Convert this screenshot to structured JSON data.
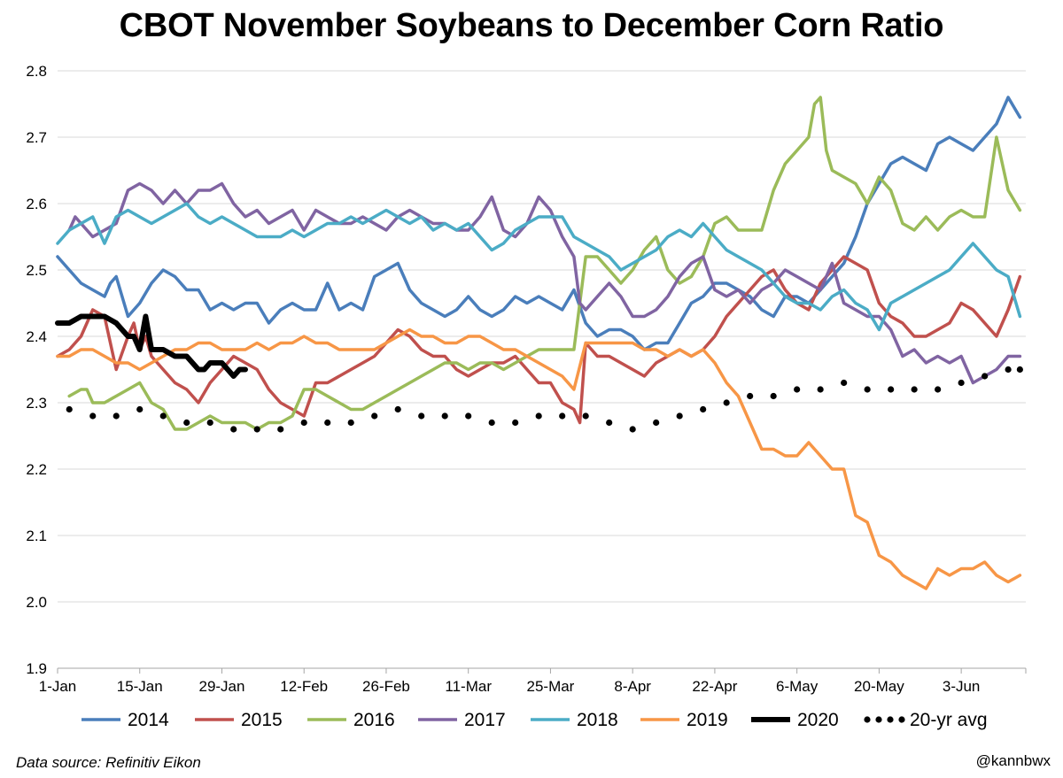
{
  "chart_data": {
    "type": "line",
    "title": "CBOT November Soybeans to December Corn Ratio",
    "xlabel": "",
    "ylabel": "",
    "x_range_days": [
      0,
      165
    ],
    "ylim": [
      1.9,
      2.8
    ],
    "yticks": [
      "1.9",
      "2.0",
      "2.1",
      "2.2",
      "2.3",
      "2.4",
      "2.5",
      "2.6",
      "2.7",
      "2.8"
    ],
    "xticks": [
      {
        "day": 0,
        "label": "1-Jan"
      },
      {
        "day": 14,
        "label": "15-Jan"
      },
      {
        "day": 28,
        "label": "29-Jan"
      },
      {
        "day": 42,
        "label": "12-Feb"
      },
      {
        "day": 56,
        "label": "26-Feb"
      },
      {
        "day": 70,
        "label": "11-Mar"
      },
      {
        "day": 84,
        "label": "25-Mar"
      },
      {
        "day": 98,
        "label": "8-Apr"
      },
      {
        "day": 112,
        "label": "22-Apr"
      },
      {
        "day": 126,
        "label": "6-May"
      },
      {
        "day": 140,
        "label": "20-May"
      },
      {
        "day": 154,
        "label": "3-Jun"
      }
    ],
    "grid": true,
    "legend_position": "bottom",
    "series": [
      {
        "name": "2014",
        "color": "#4a7ebb",
        "style": "solid",
        "x": [
          0,
          2,
          4,
          6,
          8,
          9,
          10,
          12,
          14,
          16,
          18,
          20,
          22,
          24,
          26,
          28,
          30,
          32,
          34,
          36,
          38,
          40,
          42,
          44,
          46,
          48,
          50,
          52,
          54,
          56,
          58,
          60,
          62,
          64,
          66,
          68,
          70,
          72,
          74,
          76,
          78,
          80,
          82,
          84,
          86,
          88,
          90,
          92,
          94,
          96,
          98,
          100,
          102,
          104,
          106,
          108,
          110,
          112,
          114,
          116,
          118,
          120,
          122,
          124,
          126,
          128,
          130,
          132,
          134,
          136,
          138,
          140,
          142,
          144,
          146,
          148,
          150,
          152,
          154,
          156,
          158,
          160,
          162,
          164
        ],
        "y": [
          2.52,
          2.5,
          2.48,
          2.47,
          2.46,
          2.48,
          2.49,
          2.43,
          2.45,
          2.48,
          2.5,
          2.49,
          2.47,
          2.47,
          2.44,
          2.45,
          2.44,
          2.45,
          2.45,
          2.42,
          2.44,
          2.45,
          2.44,
          2.44,
          2.48,
          2.44,
          2.45,
          2.44,
          2.49,
          2.5,
          2.51,
          2.47,
          2.45,
          2.44,
          2.43,
          2.44,
          2.46,
          2.44,
          2.43,
          2.44,
          2.46,
          2.45,
          2.46,
          2.45,
          2.44,
          2.47,
          2.42,
          2.4,
          2.41,
          2.41,
          2.4,
          2.38,
          2.39,
          2.39,
          2.42,
          2.45,
          2.46,
          2.48,
          2.48,
          2.47,
          2.46,
          2.44,
          2.43,
          2.46,
          2.46,
          2.45,
          2.47,
          2.49,
          2.51,
          2.55,
          2.6,
          2.63,
          2.66,
          2.67,
          2.66,
          2.65,
          2.69,
          2.7,
          2.69,
          2.68,
          2.7,
          2.72,
          2.76,
          2.73
        ]
      },
      {
        "name": "2015",
        "color": "#c0504d",
        "style": "solid",
        "x": [
          0,
          2,
          4,
          6,
          8,
          10,
          12,
          13,
          14,
          15,
          16,
          17,
          18,
          20,
          22,
          24,
          26,
          28,
          30,
          32,
          34,
          36,
          38,
          40,
          42,
          44,
          46,
          48,
          50,
          52,
          54,
          56,
          58,
          60,
          62,
          64,
          66,
          68,
          70,
          72,
          74,
          76,
          78,
          80,
          82,
          84,
          86,
          88,
          89,
          90,
          92,
          94,
          96,
          98,
          100,
          102,
          104,
          106,
          108,
          110,
          112,
          114,
          116,
          118,
          120,
          122,
          124,
          126,
          128,
          130,
          132,
          134,
          136,
          138,
          140,
          142,
          144,
          146,
          148,
          150,
          152,
          154,
          156,
          158,
          160,
          162,
          164
        ],
        "y": [
          2.37,
          2.38,
          2.4,
          2.44,
          2.43,
          2.35,
          2.4,
          2.42,
          2.38,
          2.4,
          2.37,
          2.36,
          2.35,
          2.33,
          2.32,
          2.3,
          2.33,
          2.35,
          2.37,
          2.36,
          2.35,
          2.32,
          2.3,
          2.29,
          2.28,
          2.33,
          2.33,
          2.34,
          2.35,
          2.36,
          2.37,
          2.39,
          2.41,
          2.4,
          2.38,
          2.37,
          2.37,
          2.35,
          2.34,
          2.35,
          2.36,
          2.36,
          2.37,
          2.35,
          2.33,
          2.33,
          2.3,
          2.29,
          2.27,
          2.39,
          2.37,
          2.37,
          2.36,
          2.35,
          2.34,
          2.36,
          2.37,
          2.38,
          2.37,
          2.38,
          2.4,
          2.43,
          2.45,
          2.47,
          2.49,
          2.5,
          2.47,
          2.45,
          2.44,
          2.48,
          2.5,
          2.52,
          2.51,
          2.5,
          2.45,
          2.43,
          2.42,
          2.4,
          2.4,
          2.41,
          2.42,
          2.45,
          2.44,
          2.42,
          2.4,
          2.44,
          2.49
        ]
      },
      {
        "name": "2016",
        "color": "#9bbb59",
        "style": "solid",
        "x": [
          2,
          4,
          5,
          6,
          8,
          10,
          12,
          14,
          16,
          18,
          20,
          22,
          24,
          26,
          28,
          30,
          32,
          34,
          36,
          38,
          40,
          42,
          44,
          46,
          48,
          50,
          52,
          54,
          56,
          58,
          60,
          62,
          64,
          66,
          68,
          70,
          72,
          74,
          76,
          78,
          80,
          82,
          84,
          86,
          88,
          90,
          92,
          94,
          96,
          98,
          100,
          102,
          104,
          106,
          108,
          110,
          112,
          114,
          116,
          118,
          120,
          122,
          124,
          126,
          128,
          129,
          130,
          131,
          132,
          134,
          136,
          138,
          140,
          142,
          144,
          146,
          148,
          150,
          152,
          154,
          156,
          158,
          160,
          162,
          164
        ],
        "y": [
          2.31,
          2.32,
          2.32,
          2.3,
          2.3,
          2.31,
          2.32,
          2.33,
          2.3,
          2.29,
          2.26,
          2.26,
          2.27,
          2.28,
          2.27,
          2.27,
          2.27,
          2.26,
          2.27,
          2.27,
          2.28,
          2.32,
          2.32,
          2.31,
          2.3,
          2.29,
          2.29,
          2.3,
          2.31,
          2.32,
          2.33,
          2.34,
          2.35,
          2.36,
          2.36,
          2.35,
          2.36,
          2.36,
          2.35,
          2.36,
          2.37,
          2.38,
          2.38,
          2.38,
          2.38,
          2.52,
          2.52,
          2.5,
          2.48,
          2.5,
          2.53,
          2.55,
          2.5,
          2.48,
          2.49,
          2.52,
          2.57,
          2.58,
          2.56,
          2.56,
          2.56,
          2.62,
          2.66,
          2.68,
          2.7,
          2.75,
          2.76,
          2.68,
          2.65,
          2.64,
          2.63,
          2.6,
          2.64,
          2.62,
          2.57,
          2.56,
          2.58,
          2.56,
          2.58,
          2.59,
          2.58,
          2.58,
          2.7,
          2.62,
          2.59
        ]
      },
      {
        "name": "2017",
        "color": "#8064a2",
        "style": "solid",
        "x": [
          2,
          3,
          4,
          6,
          8,
          10,
          12,
          14,
          16,
          18,
          20,
          22,
          24,
          26,
          28,
          30,
          32,
          34,
          36,
          38,
          40,
          42,
          44,
          46,
          48,
          50,
          52,
          54,
          56,
          58,
          60,
          62,
          64,
          66,
          68,
          70,
          72,
          74,
          76,
          78,
          80,
          82,
          84,
          86,
          88,
          89,
          90,
          92,
          94,
          96,
          98,
          100,
          102,
          104,
          106,
          108,
          110,
          112,
          114,
          116,
          118,
          120,
          122,
          124,
          126,
          128,
          130,
          132,
          134,
          136,
          138,
          140,
          142,
          144,
          146,
          148,
          150,
          152,
          154,
          156,
          158,
          160,
          162,
          164
        ],
        "y": [
          2.56,
          2.58,
          2.57,
          2.55,
          2.56,
          2.57,
          2.62,
          2.63,
          2.62,
          2.6,
          2.62,
          2.6,
          2.62,
          2.62,
          2.63,
          2.6,
          2.58,
          2.59,
          2.57,
          2.58,
          2.59,
          2.56,
          2.59,
          2.58,
          2.57,
          2.57,
          2.58,
          2.57,
          2.56,
          2.58,
          2.59,
          2.58,
          2.57,
          2.57,
          2.56,
          2.56,
          2.58,
          2.61,
          2.56,
          2.55,
          2.57,
          2.61,
          2.59,
          2.55,
          2.52,
          2.45,
          2.44,
          2.46,
          2.48,
          2.46,
          2.43,
          2.43,
          2.44,
          2.46,
          2.49,
          2.51,
          2.52,
          2.47,
          2.46,
          2.47,
          2.45,
          2.47,
          2.48,
          2.5,
          2.49,
          2.48,
          2.47,
          2.51,
          2.45,
          2.44,
          2.43,
          2.43,
          2.41,
          2.37,
          2.38,
          2.36,
          2.37,
          2.36,
          2.37,
          2.33,
          2.34,
          2.35,
          2.37,
          2.37
        ]
      },
      {
        "name": "2018",
        "color": "#4bacc6",
        "style": "solid",
        "x": [
          0,
          2,
          4,
          6,
          8,
          10,
          12,
          14,
          16,
          18,
          20,
          22,
          24,
          26,
          28,
          30,
          32,
          34,
          36,
          38,
          40,
          42,
          44,
          46,
          48,
          50,
          52,
          54,
          56,
          58,
          60,
          62,
          64,
          66,
          68,
          70,
          72,
          74,
          76,
          78,
          80,
          82,
          84,
          86,
          88,
          90,
          92,
          94,
          96,
          98,
          100,
          102,
          104,
          106,
          108,
          110,
          112,
          114,
          116,
          118,
          120,
          122,
          124,
          126,
          128,
          130,
          132,
          134,
          136,
          138,
          140,
          142,
          144,
          146,
          148,
          150,
          152,
          154,
          156,
          158,
          160,
          162,
          164
        ],
        "y": [
          2.54,
          2.56,
          2.57,
          2.58,
          2.54,
          2.58,
          2.59,
          2.58,
          2.57,
          2.58,
          2.59,
          2.6,
          2.58,
          2.57,
          2.58,
          2.57,
          2.56,
          2.55,
          2.55,
          2.55,
          2.56,
          2.55,
          2.56,
          2.57,
          2.57,
          2.58,
          2.57,
          2.58,
          2.59,
          2.58,
          2.57,
          2.58,
          2.56,
          2.57,
          2.56,
          2.57,
          2.55,
          2.53,
          2.54,
          2.56,
          2.57,
          2.58,
          2.58,
          2.58,
          2.55,
          2.54,
          2.53,
          2.52,
          2.5,
          2.51,
          2.52,
          2.53,
          2.55,
          2.56,
          2.55,
          2.57,
          2.55,
          2.53,
          2.52,
          2.51,
          2.5,
          2.48,
          2.46,
          2.45,
          2.45,
          2.44,
          2.46,
          2.47,
          2.45,
          2.44,
          2.41,
          2.45,
          2.46,
          2.47,
          2.48,
          2.49,
          2.5,
          2.52,
          2.54,
          2.52,
          2.5,
          2.49,
          2.43
        ]
      },
      {
        "name": "2019",
        "color": "#f79646",
        "style": "solid",
        "x": [
          0,
          2,
          4,
          6,
          8,
          10,
          12,
          14,
          16,
          18,
          20,
          22,
          24,
          26,
          28,
          30,
          32,
          34,
          36,
          38,
          40,
          42,
          44,
          46,
          48,
          50,
          52,
          54,
          56,
          58,
          60,
          62,
          64,
          66,
          68,
          70,
          72,
          74,
          76,
          78,
          80,
          82,
          84,
          86,
          88,
          90,
          92,
          94,
          96,
          98,
          100,
          102,
          104,
          106,
          108,
          110,
          112,
          114,
          116,
          118,
          120,
          122,
          124,
          126,
          128,
          130,
          132,
          134,
          136,
          138,
          140,
          142,
          144,
          146,
          148,
          150,
          152,
          154,
          156,
          158,
          160,
          162,
          164
        ],
        "y": [
          2.37,
          2.37,
          2.38,
          2.38,
          2.37,
          2.36,
          2.36,
          2.35,
          2.36,
          2.37,
          2.38,
          2.38,
          2.39,
          2.39,
          2.38,
          2.38,
          2.38,
          2.39,
          2.38,
          2.39,
          2.39,
          2.4,
          2.39,
          2.39,
          2.38,
          2.38,
          2.38,
          2.38,
          2.39,
          2.4,
          2.41,
          2.4,
          2.4,
          2.39,
          2.39,
          2.4,
          2.4,
          2.39,
          2.38,
          2.38,
          2.37,
          2.36,
          2.35,
          2.34,
          2.32,
          2.39,
          2.39,
          2.39,
          2.39,
          2.39,
          2.38,
          2.38,
          2.37,
          2.38,
          2.37,
          2.38,
          2.36,
          2.33,
          2.31,
          2.27,
          2.23,
          2.23,
          2.22,
          2.22,
          2.24,
          2.22,
          2.2,
          2.2,
          2.13,
          2.12,
          2.07,
          2.06,
          2.04,
          2.03,
          2.02,
          2.05,
          2.04,
          2.05,
          2.05,
          2.06,
          2.04,
          2.03,
          2.04
        ]
      },
      {
        "name": "2020",
        "color": "#000000",
        "style": "thick",
        "x": [
          0,
          2,
          4,
          6,
          8,
          10,
          12,
          13,
          14,
          15,
          16,
          17,
          18,
          20,
          22,
          24,
          25,
          26,
          28,
          29,
          30,
          31,
          32
        ],
        "y": [
          2.42,
          2.42,
          2.43,
          2.43,
          2.43,
          2.42,
          2.4,
          2.4,
          2.38,
          2.43,
          2.38,
          2.38,
          2.38,
          2.37,
          2.37,
          2.35,
          2.35,
          2.36,
          2.36,
          2.35,
          2.34,
          2.35,
          2.35
        ]
      },
      {
        "name": "20-yr avg",
        "color": "#000000",
        "style": "dotted",
        "x": [
          2,
          6,
          10,
          14,
          18,
          22,
          26,
          30,
          34,
          38,
          42,
          46,
          50,
          54,
          58,
          62,
          66,
          70,
          74,
          78,
          82,
          86,
          90,
          94,
          98,
          102,
          106,
          110,
          114,
          118,
          122,
          126,
          130,
          134,
          138,
          142,
          146,
          150,
          154,
          158,
          162,
          164
        ],
        "y": [
          2.29,
          2.28,
          2.28,
          2.29,
          2.28,
          2.27,
          2.27,
          2.26,
          2.26,
          2.26,
          2.27,
          2.27,
          2.27,
          2.28,
          2.29,
          2.28,
          2.28,
          2.28,
          2.27,
          2.27,
          2.28,
          2.28,
          2.28,
          2.27,
          2.26,
          2.27,
          2.28,
          2.29,
          2.3,
          2.31,
          2.31,
          2.32,
          2.32,
          2.33,
          2.32,
          2.32,
          2.32,
          2.32,
          2.33,
          2.34,
          2.35,
          2.35
        ]
      }
    ]
  },
  "footer": {
    "source": "Data source: Refinitiv Eikon",
    "handle": "@kannbwx"
  }
}
